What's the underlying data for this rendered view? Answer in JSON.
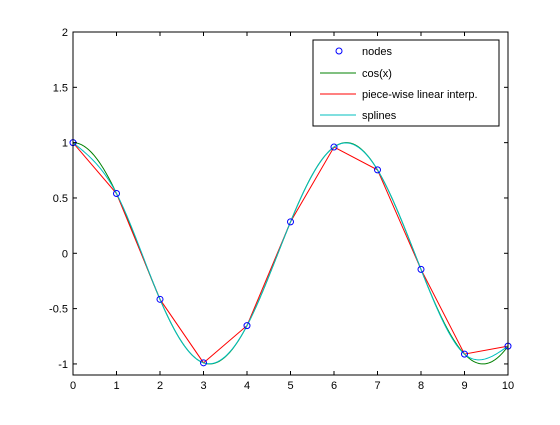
{
  "chart_data": {
    "type": "line",
    "xlim": [
      0,
      10
    ],
    "ylim": [
      -1.1,
      2
    ],
    "x_ticks": [
      "0",
      "1",
      "2",
      "3",
      "4",
      "5",
      "6",
      "7",
      "8",
      "9",
      "10"
    ],
    "y_ticks": [
      "-1",
      "-0.5",
      "0",
      "0.5",
      "1",
      "1.5",
      "2"
    ],
    "grid": false,
    "legend_position": "top-right",
    "series": [
      {
        "name": "nodes",
        "style": "markers",
        "marker": "circle",
        "color": "#0000ff",
        "x": [
          0,
          1,
          2,
          3,
          4,
          5,
          6,
          7,
          8,
          9,
          10
        ],
        "y": [
          1.0,
          0.5403,
          -0.4161,
          -0.99,
          -0.6536,
          0.2837,
          0.9602,
          0.7539,
          -0.1455,
          -0.9111,
          -0.8391
        ]
      },
      {
        "name": "cos(x)",
        "style": "line",
        "color": "#008000",
        "function": "cos",
        "x_range": [
          0,
          10
        ]
      },
      {
        "name": "piece-wise linear interp.",
        "style": "line",
        "color": "#ff0000",
        "x": [
          0,
          1,
          2,
          3,
          4,
          5,
          6,
          7,
          8,
          9,
          10
        ],
        "y": [
          1.0,
          0.5403,
          -0.4161,
          -0.99,
          -0.6536,
          0.2837,
          0.9602,
          0.7539,
          -0.1455,
          -0.9111,
          -0.8391
        ]
      },
      {
        "name": "splines",
        "style": "line",
        "color": "#00bfbf",
        "interpolation": "spline",
        "x": [
          0,
          1,
          2,
          3,
          4,
          5,
          6,
          7,
          8,
          9,
          10
        ],
        "y": [
          1.0,
          0.5403,
          -0.4161,
          -0.99,
          -0.6536,
          0.2837,
          0.9602,
          0.7539,
          -0.1455,
          -0.9111,
          -0.8391
        ]
      }
    ]
  }
}
